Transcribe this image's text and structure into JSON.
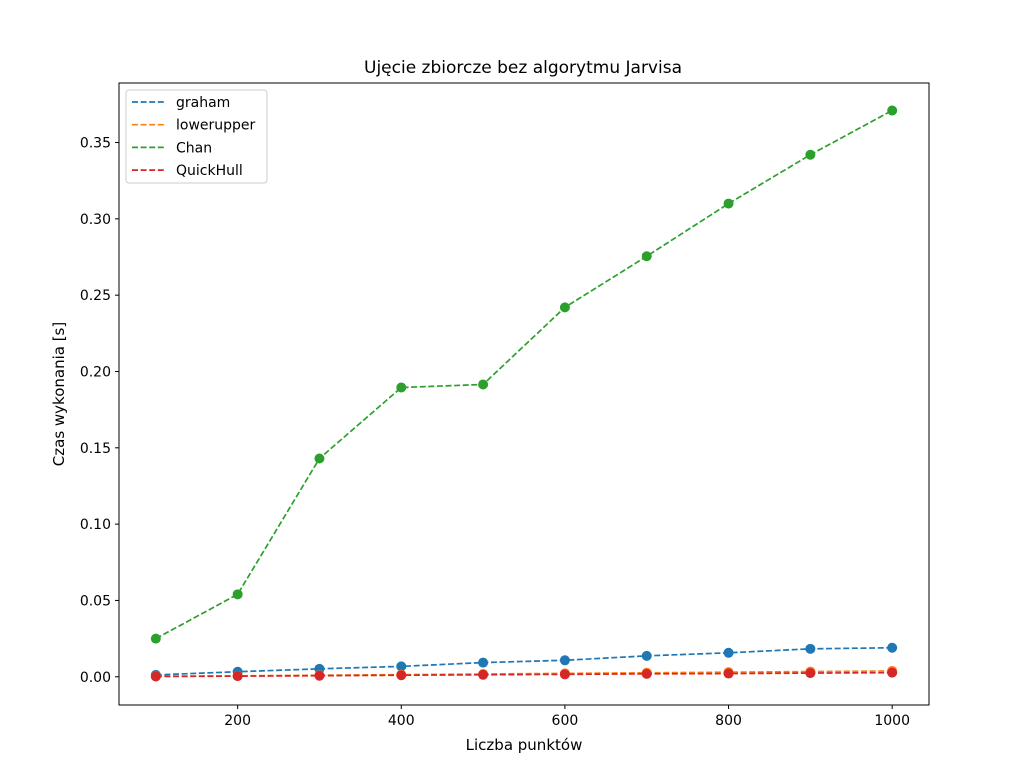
{
  "chart_data": {
    "type": "line",
    "title": "Ujęcie zbiorcze bez algorytmu Jarvisa",
    "xlabel": "Liczba punktów",
    "ylabel": "Czas wykonania [s]",
    "xlim": [
      55,
      1045
    ],
    "ylim": [
      -0.0185,
      0.389
    ],
    "xticks": [
      200,
      400,
      600,
      800,
      1000
    ],
    "yticks": [
      0.0,
      0.05,
      0.1,
      0.15,
      0.2,
      0.25,
      0.3,
      0.35
    ],
    "xtick_labels": [
      "200",
      "400",
      "600",
      "800",
      "1000"
    ],
    "ytick_labels": [
      "0.00",
      "0.05",
      "0.10",
      "0.15",
      "0.20",
      "0.25",
      "0.30",
      "0.35"
    ],
    "grid": false,
    "legend_position": "upper-left",
    "line_style": "dashed",
    "markers": "circle",
    "x": [
      100,
      200,
      300,
      400,
      500,
      600,
      700,
      800,
      900,
      1000
    ],
    "series": [
      {
        "name": "graham",
        "color": "#1f77b4",
        "values": [
          0.0012,
          0.0033,
          0.0052,
          0.0068,
          0.0093,
          0.0108,
          0.0137,
          0.0157,
          0.0183,
          0.019
        ]
      },
      {
        "name": "lowerupper",
        "color": "#ff7f0e",
        "values": [
          0.0003,
          0.0006,
          0.001,
          0.0014,
          0.0018,
          0.0022,
          0.0026,
          0.003,
          0.0034,
          0.0038
        ]
      },
      {
        "name": "Chan",
        "color": "#2ca02c",
        "values": [
          0.025,
          0.054,
          0.143,
          0.1895,
          0.1915,
          0.242,
          0.2755,
          0.31,
          0.342,
          0.371
        ]
      },
      {
        "name": "QuickHull",
        "color": "#d62728",
        "values": [
          0.0002,
          0.0004,
          0.0007,
          0.001,
          0.0013,
          0.0016,
          0.0019,
          0.0021,
          0.0024,
          0.0027
        ]
      }
    ]
  }
}
